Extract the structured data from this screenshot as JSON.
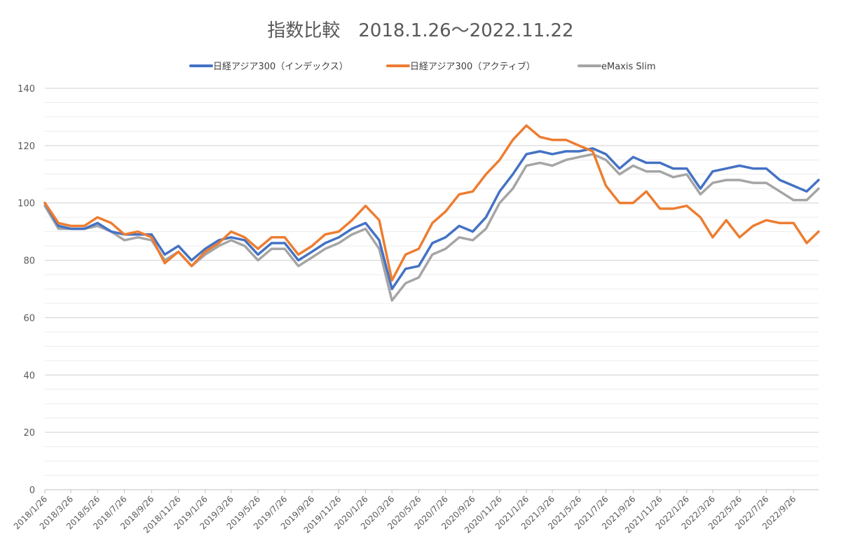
{
  "chart_data": {
    "type": "line",
    "title": "指数比較　2018.1.26～2022.11.22",
    "xlabel": "",
    "ylabel": "",
    "ylim": [
      0,
      140
    ],
    "yticks": [
      0,
      20,
      40,
      60,
      80,
      100,
      120,
      140
    ],
    "grid": "major and minor horizontal gridlines",
    "legend_position": "top",
    "x_tick_labels": [
      "2018/1/26",
      "2018/3/26",
      "2018/5/26",
      "2018/7/26",
      "2018/9/26",
      "2018/11/26",
      "2019/1/26",
      "2019/3/26",
      "2019/5/26",
      "2019/7/26",
      "2019/9/26",
      "2019/11/26",
      "2020/1/26",
      "2020/3/26",
      "2020/5/26",
      "2020/7/26",
      "2020/9/26",
      "2020/11/26",
      "2021/1/26",
      "2021/3/26",
      "2021/5/26",
      "2021/7/26",
      "2021/9/26",
      "2021/11/26",
      "2022/1/26",
      "2022/3/26",
      "2022/5/26",
      "2022/7/26",
      "2022/9/26"
    ],
    "x": [
      "2018-01-26",
      "2018-02-26",
      "2018-03-26",
      "2018-04-26",
      "2018-05-26",
      "2018-06-26",
      "2018-07-26",
      "2018-08-26",
      "2018-09-26",
      "2018-10-26",
      "2018-11-26",
      "2018-12-26",
      "2019-01-26",
      "2019-02-26",
      "2019-03-26",
      "2019-04-26",
      "2019-05-26",
      "2019-06-26",
      "2019-07-26",
      "2019-08-26",
      "2019-09-26",
      "2019-10-26",
      "2019-11-26",
      "2019-12-26",
      "2020-01-26",
      "2020-02-26",
      "2020-03-26",
      "2020-04-26",
      "2020-05-26",
      "2020-06-26",
      "2020-07-26",
      "2020-08-26",
      "2020-09-26",
      "2020-10-26",
      "2020-11-26",
      "2020-12-26",
      "2021-01-26",
      "2021-02-26",
      "2021-03-26",
      "2021-04-26",
      "2021-05-26",
      "2021-06-26",
      "2021-07-26",
      "2021-08-26",
      "2021-09-26",
      "2021-10-26",
      "2021-11-26",
      "2021-12-26",
      "2022-01-26",
      "2022-02-26",
      "2022-03-26",
      "2022-04-26",
      "2022-05-26",
      "2022-06-26",
      "2022-07-26",
      "2022-08-26",
      "2022-09-26",
      "2022-10-26",
      "2022-11-22"
    ],
    "series": [
      {
        "name": "日経アジア300（インデックス）",
        "color": "#4472C4",
        "values": [
          100,
          92,
          91,
          91,
          93,
          90,
          89,
          89,
          89,
          82,
          85,
          80,
          84,
          87,
          88,
          87,
          82,
          86,
          86,
          80,
          83,
          86,
          88,
          91,
          93,
          87,
          70,
          77,
          78,
          86,
          88,
          92,
          90,
          95,
          104,
          110,
          117,
          118,
          117,
          118,
          118,
          119,
          117,
          112,
          116,
          114,
          114,
          112,
          112,
          105,
          111,
          112,
          113,
          112,
          112,
          108,
          106,
          104,
          108
        ]
      },
      {
        "name": "日経アジア300（アクティブ）",
        "color": "#ED7D31",
        "values": [
          100,
          93,
          92,
          92,
          95,
          93,
          89,
          90,
          88,
          79,
          83,
          78,
          83,
          86,
          90,
          88,
          84,
          88,
          88,
          82,
          85,
          89,
          90,
          94,
          99,
          94,
          73,
          82,
          84,
          93,
          97,
          103,
          104,
          110,
          115,
          122,
          127,
          123,
          122,
          122,
          120,
          118,
          106,
          100,
          100,
          104,
          98,
          98,
          99,
          95,
          88,
          94,
          88,
          92,
          94,
          93,
          93,
          86,
          90
        ]
      },
      {
        "name": "eMaxis Slim",
        "color": "#A5A5A5",
        "values": [
          99,
          91,
          91,
          91,
          92,
          90,
          87,
          88,
          87,
          80,
          83,
          78,
          82,
          85,
          87,
          85,
          80,
          84,
          84,
          78,
          81,
          84,
          86,
          89,
          91,
          84,
          66,
          72,
          74,
          82,
          84,
          88,
          87,
          91,
          100,
          105,
          113,
          114,
          113,
          115,
          116,
          117,
          115,
          110,
          113,
          111,
          111,
          109,
          110,
          103,
          107,
          108,
          108,
          107,
          107,
          104,
          101,
          101,
          105
        ]
      }
    ]
  }
}
